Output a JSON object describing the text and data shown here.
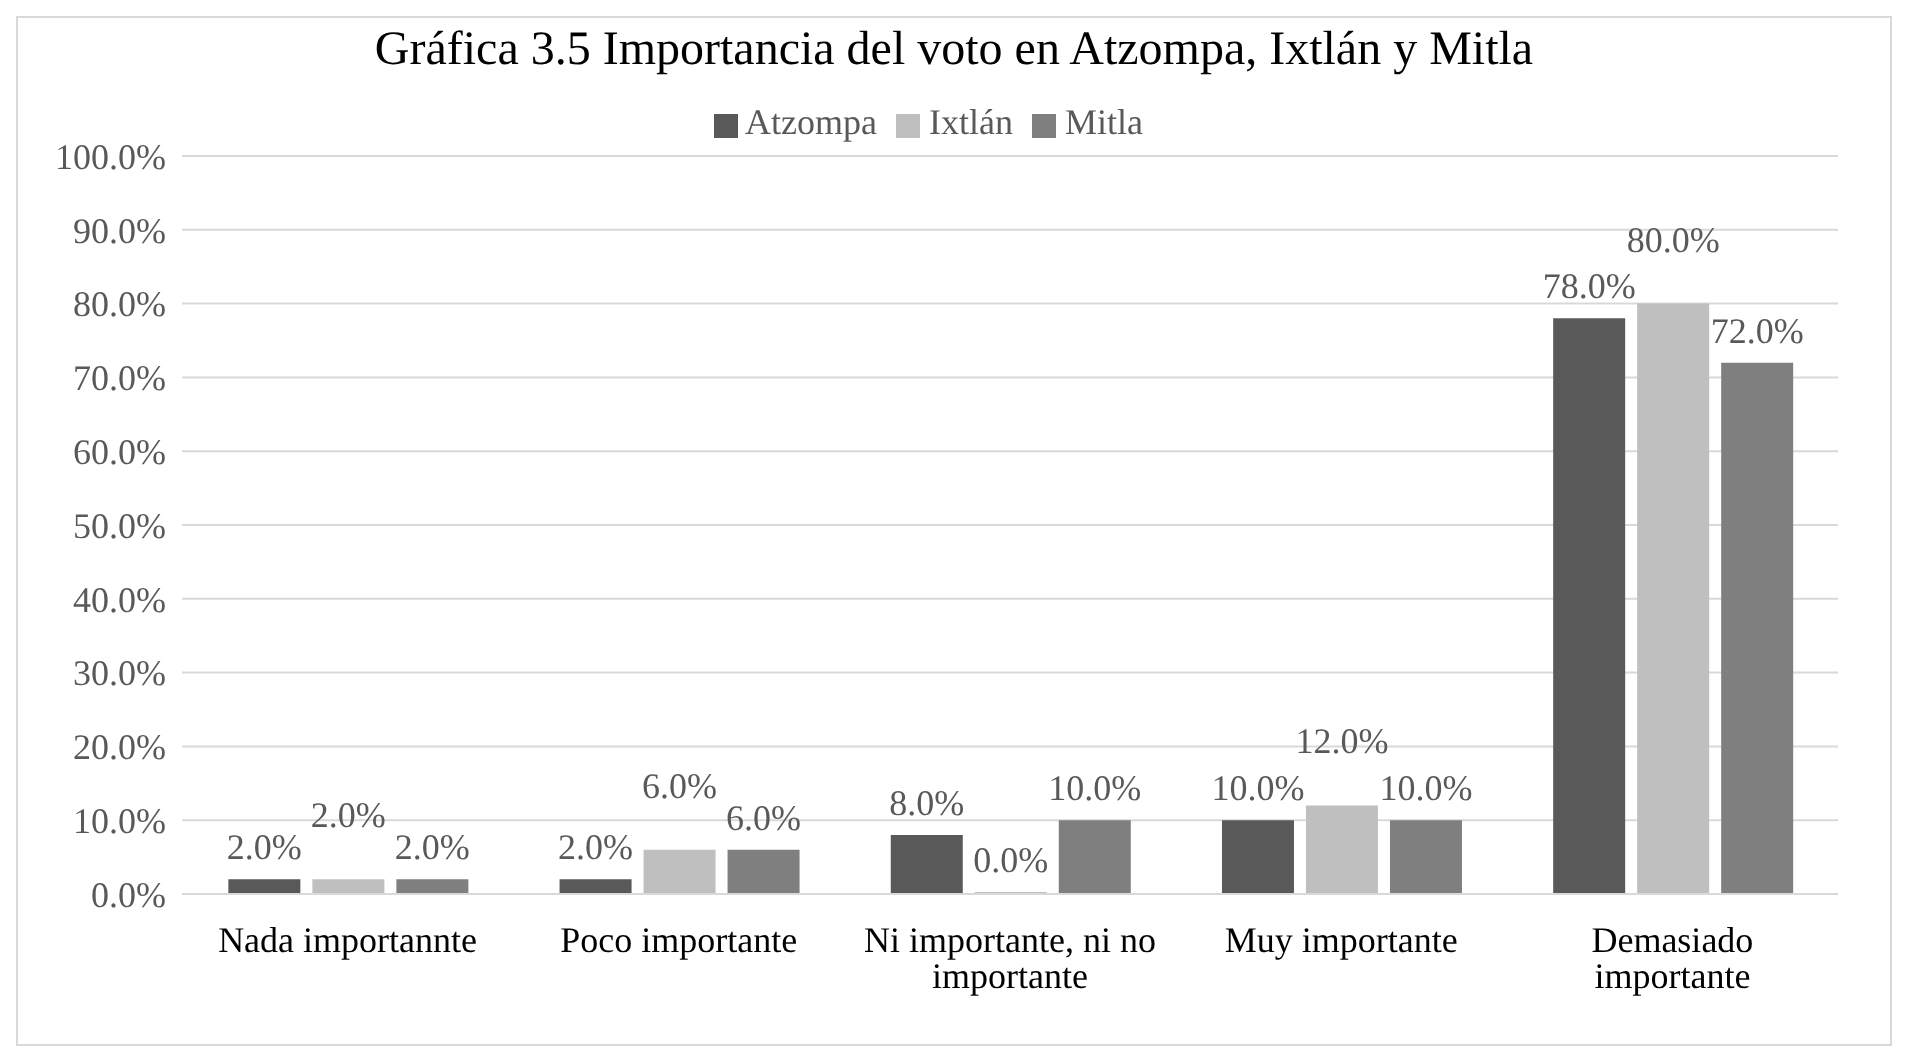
{
  "chart_data": {
    "type": "bar",
    "title": "Gráfica 3.5 Importancia del voto en Atzompa, Ixtlán y Mitla",
    "categories": [
      "Nada importannte",
      "Poco importante",
      "Ni importante, ni no importante",
      "Muy importante",
      "Demasiado importante"
    ],
    "series": [
      {
        "name": "Atzompa",
        "color": "#595959",
        "values": [
          2,
          2,
          8,
          10,
          78
        ],
        "value_labels": [
          "2.0%",
          "2.0%",
          "8.0%",
          "10.0%",
          "78.0%"
        ]
      },
      {
        "name": "Ixtlán",
        "color": "#bfbfbf",
        "values": [
          2,
          6,
          0,
          12,
          80
        ],
        "value_labels": [
          "2.0%",
          "6.0%",
          "0.0%",
          "12.0%",
          "80.0%"
        ]
      },
      {
        "name": "Mitla",
        "color": "#7f7f7f",
        "values": [
          2,
          6,
          10,
          10,
          72
        ],
        "value_labels": [
          "2.0%",
          "6.0%",
          "10.0%",
          "10.0%",
          "72.0%"
        ]
      }
    ],
    "ylim": [
      0,
      100
    ],
    "yticks": [
      {
        "value": 0,
        "label": "0.0%"
      },
      {
        "value": 10,
        "label": "10.0%"
      },
      {
        "value": 20,
        "label": "20.0%"
      },
      {
        "value": 30,
        "label": "30.0%"
      },
      {
        "value": 40,
        "label": "40.0%"
      },
      {
        "value": 50,
        "label": "50.0%"
      },
      {
        "value": 60,
        "label": "60.0%"
      },
      {
        "value": 70,
        "label": "70.0%"
      },
      {
        "value": 80,
        "label": "80.0%"
      },
      {
        "value": 90,
        "label": "90.0%"
      },
      {
        "value": 100,
        "label": "100.0%"
      }
    ],
    "grid": "y",
    "legend": "top"
  }
}
